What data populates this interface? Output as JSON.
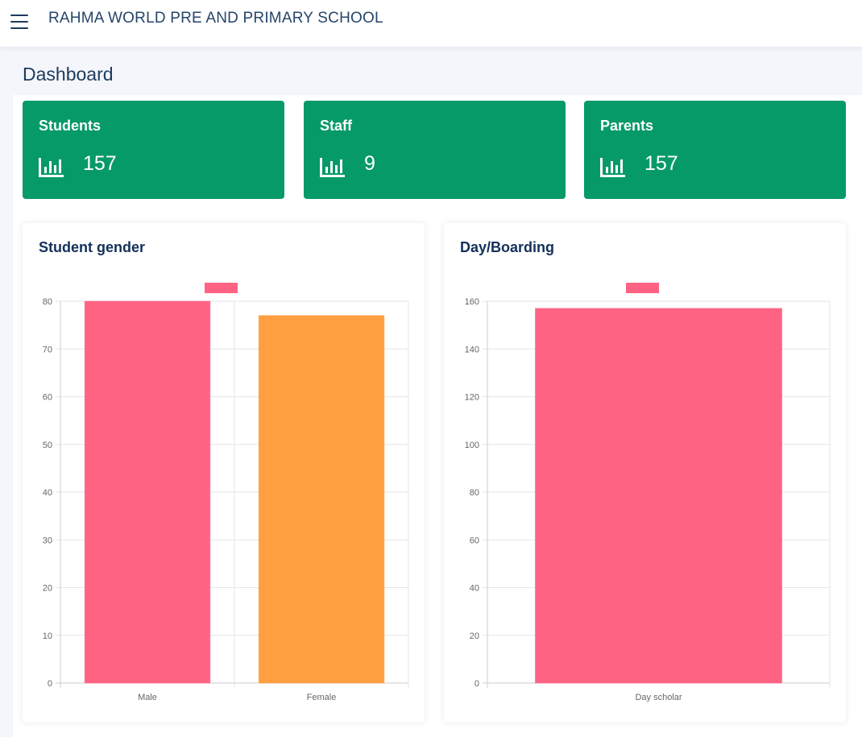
{
  "header": {
    "menu_icon": "hamburger-menu-icon",
    "school_name": "RAHMA WORLD PRE AND PRIMARY SCHOOL"
  },
  "page": {
    "title": "Dashboard"
  },
  "stats": [
    {
      "label": "Students",
      "value": "157",
      "icon": "bar-chart-icon"
    },
    {
      "label": "Staff",
      "value": "9",
      "icon": "bar-chart-icon"
    },
    {
      "label": "Parents",
      "value": "157",
      "icon": "bar-chart-icon"
    }
  ],
  "colors": {
    "stat_card": "#069a68",
    "male_bar": "#ff6384",
    "female_bar": "#ff9f40"
  },
  "charts": [
    {
      "title": "Student gender",
      "chart_data": {
        "type": "bar",
        "categories": [
          "Male",
          "Female"
        ],
        "values": [
          80,
          77
        ],
        "bar_colors": [
          "#ff6384",
          "#ff9f40"
        ],
        "legend_color": "#ff6384",
        "ylim": [
          0,
          80
        ],
        "yticks": [
          0,
          10,
          20,
          30,
          40,
          50,
          60,
          70,
          80
        ],
        "grid": true,
        "legend_position": "top-center"
      }
    },
    {
      "title": "Day/Boarding",
      "chart_data": {
        "type": "bar",
        "categories": [
          "Day scholar"
        ],
        "values": [
          157
        ],
        "bar_colors": [
          "#ff6384"
        ],
        "legend_color": "#ff6384",
        "ylim": [
          0,
          160
        ],
        "yticks": [
          0,
          20,
          40,
          60,
          80,
          100,
          120,
          140,
          160
        ],
        "grid": true,
        "legend_position": "top-center"
      }
    }
  ]
}
